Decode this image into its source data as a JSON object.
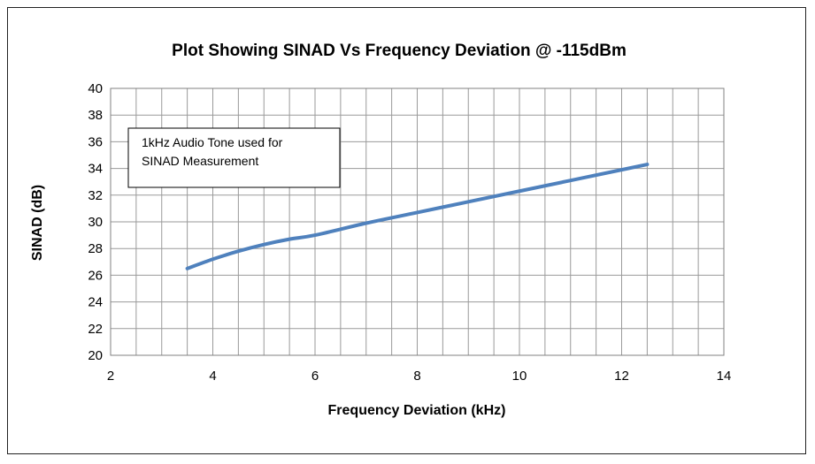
{
  "chart_data": {
    "type": "line",
    "title": "Plot Showing SINAD Vs Frequency Deviation @ -115dBm",
    "xlabel": "Frequency Deviation (kHz)",
    "ylabel": "SINAD (dB)",
    "xlim": [
      2,
      14
    ],
    "ylim": [
      20,
      40
    ],
    "xticks": [
      2,
      4,
      6,
      8,
      10,
      12,
      14
    ],
    "yticks": [
      20,
      22,
      24,
      26,
      28,
      30,
      32,
      34,
      36,
      38,
      40
    ],
    "grid": true,
    "annotation": [
      "1kHz Audio Tone used for",
      "SINAD Measurement"
    ],
    "series": [
      {
        "color": "#4F81BD",
        "x": [
          3.5,
          4.0,
          4.5,
          5.0,
          5.5,
          6.0,
          7.0,
          8.0,
          9.0,
          10.0,
          11.0,
          12.0,
          12.5
        ],
        "y": [
          26.5,
          27.2,
          27.8,
          28.3,
          28.7,
          29.0,
          29.9,
          30.7,
          31.5,
          32.3,
          33.1,
          33.9,
          34.3
        ]
      }
    ]
  }
}
